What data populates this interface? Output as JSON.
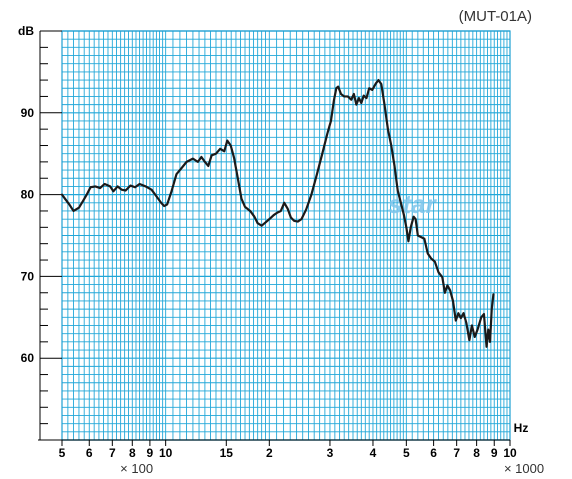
{
  "model_label": "(MUT-01A)",
  "watermark": "star",
  "chart_data": {
    "type": "line",
    "title": "",
    "xlabel": "Hz",
    "ylabel": "dB",
    "xscale": "log",
    "xlim": [
      500,
      10000
    ],
    "ylim": [
      50,
      100
    ],
    "grid": true,
    "yticks": [
      {
        "value": 60,
        "label": "60"
      },
      {
        "value": 70,
        "label": "70"
      },
      {
        "value": 80,
        "label": "80"
      },
      {
        "value": 90,
        "label": "90"
      },
      {
        "value": 100,
        "label": "dB"
      }
    ],
    "xticks": [
      {
        "value": 500,
        "label": "5"
      },
      {
        "value": 600,
        "label": "6"
      },
      {
        "value": 700,
        "label": "7"
      },
      {
        "value": 800,
        "label": "8"
      },
      {
        "value": 900,
        "label": "9"
      },
      {
        "value": 1000,
        "label": "10"
      },
      {
        "value": 1500,
        "label": "15"
      },
      {
        "value": 2000,
        "label": "2"
      },
      {
        "value": 3000,
        "label": "3"
      },
      {
        "value": 4000,
        "label": "4"
      },
      {
        "value": 5000,
        "label": "5"
      },
      {
        "value": 6000,
        "label": "6"
      },
      {
        "value": 7000,
        "label": "7"
      },
      {
        "value": 8000,
        "label": "8"
      },
      {
        "value": 9000,
        "label": "9"
      },
      {
        "value": 10000,
        "label": "10"
      }
    ],
    "multipliers": [
      {
        "value": 750,
        "label": "× 100"
      },
      {
        "value": 10000,
        "label": "× 1000"
      }
    ],
    "series": [
      {
        "color": "#1a1a1a",
        "points": [
          [
            500,
            80.0
          ],
          [
            510,
            79.5
          ],
          [
            525,
            78.8
          ],
          [
            540,
            78.0
          ],
          [
            560,
            78.4
          ],
          [
            575,
            79.2
          ],
          [
            590,
            80.0
          ],
          [
            605,
            80.9
          ],
          [
            625,
            81.0
          ],
          [
            645,
            80.8
          ],
          [
            665,
            81.3
          ],
          [
            690,
            81.0
          ],
          [
            705,
            80.4
          ],
          [
            725,
            81.0
          ],
          [
            745,
            80.6
          ],
          [
            765,
            80.5
          ],
          [
            790,
            81.1
          ],
          [
            815,
            80.9
          ],
          [
            840,
            81.3
          ],
          [
            875,
            81.0
          ],
          [
            910,
            80.6
          ],
          [
            940,
            79.8
          ],
          [
            970,
            79.0
          ],
          [
            990,
            78.6
          ],
          [
            1010,
            78.8
          ],
          [
            1040,
            80.4
          ],
          [
            1075,
            82.5
          ],
          [
            1110,
            83.2
          ],
          [
            1150,
            84.0
          ],
          [
            1200,
            84.4
          ],
          [
            1240,
            84.0
          ],
          [
            1270,
            84.6
          ],
          [
            1300,
            84.0
          ],
          [
            1330,
            83.5
          ],
          [
            1360,
            84.8
          ],
          [
            1400,
            85.0
          ],
          [
            1440,
            85.6
          ],
          [
            1480,
            85.3
          ],
          [
            1510,
            86.6
          ],
          [
            1545,
            86.0
          ],
          [
            1580,
            84.5
          ],
          [
            1620,
            82.0
          ],
          [
            1660,
            79.5
          ],
          [
            1700,
            78.5
          ],
          [
            1760,
            78.0
          ],
          [
            1810,
            77.3
          ],
          [
            1850,
            76.5
          ],
          [
            1900,
            76.2
          ],
          [
            1950,
            76.6
          ],
          [
            2000,
            77.0
          ],
          [
            2060,
            77.5
          ],
          [
            2110,
            77.8
          ],
          [
            2160,
            78.0
          ],
          [
            2210,
            79.0
          ],
          [
            2260,
            78.3
          ],
          [
            2310,
            77.2
          ],
          [
            2360,
            76.8
          ],
          [
            2420,
            76.7
          ],
          [
            2480,
            77.0
          ],
          [
            2560,
            78.2
          ],
          [
            2650,
            80.0
          ],
          [
            2750,
            82.5
          ],
          [
            2850,
            85.0
          ],
          [
            2950,
            87.5
          ],
          [
            3020,
            89.0
          ],
          [
            3080,
            91.5
          ],
          [
            3130,
            93.0
          ],
          [
            3170,
            93.2
          ],
          [
            3230,
            92.3
          ],
          [
            3300,
            92.0
          ],
          [
            3380,
            92.0
          ],
          [
            3460,
            91.6
          ],
          [
            3520,
            92.3
          ],
          [
            3580,
            91.0
          ],
          [
            3640,
            91.8
          ],
          [
            3700,
            91.2
          ],
          [
            3760,
            92.1
          ],
          [
            3830,
            91.8
          ],
          [
            3900,
            93.0
          ],
          [
            3980,
            92.8
          ],
          [
            4080,
            93.6
          ],
          [
            4150,
            94.0
          ],
          [
            4230,
            93.5
          ],
          [
            4320,
            91.0
          ],
          [
            4420,
            88.0
          ],
          [
            4520,
            86.0
          ],
          [
            4620,
            83.5
          ],
          [
            4720,
            80.5
          ],
          [
            4820,
            79.0
          ],
          [
            4920,
            77.5
          ],
          [
            5000,
            76.0
          ],
          [
            5070,
            74.3
          ],
          [
            5150,
            76.0
          ],
          [
            5250,
            77.3
          ],
          [
            5320,
            77.0
          ],
          [
            5400,
            75.0
          ],
          [
            5520,
            74.8
          ],
          [
            5640,
            74.6
          ],
          [
            5770,
            72.8
          ],
          [
            5900,
            72.2
          ],
          [
            6050,
            71.8
          ],
          [
            6200,
            70.5
          ],
          [
            6360,
            69.9
          ],
          [
            6470,
            68.0
          ],
          [
            6580,
            68.9
          ],
          [
            6700,
            68.3
          ],
          [
            6830,
            67.0
          ],
          [
            6960,
            64.6
          ],
          [
            7080,
            65.5
          ],
          [
            7200,
            64.9
          ],
          [
            7330,
            65.5
          ],
          [
            7470,
            64.3
          ],
          [
            7620,
            62.2
          ],
          [
            7750,
            64.0
          ],
          [
            7900,
            62.6
          ],
          [
            8050,
            63.5
          ],
          [
            8250,
            65.0
          ],
          [
            8400,
            65.4
          ],
          [
            8550,
            61.4
          ],
          [
            8650,
            63.5
          ],
          [
            8750,
            62.0
          ],
          [
            8850,
            66.0
          ],
          [
            8950,
            67.8
          ]
        ]
      }
    ]
  }
}
